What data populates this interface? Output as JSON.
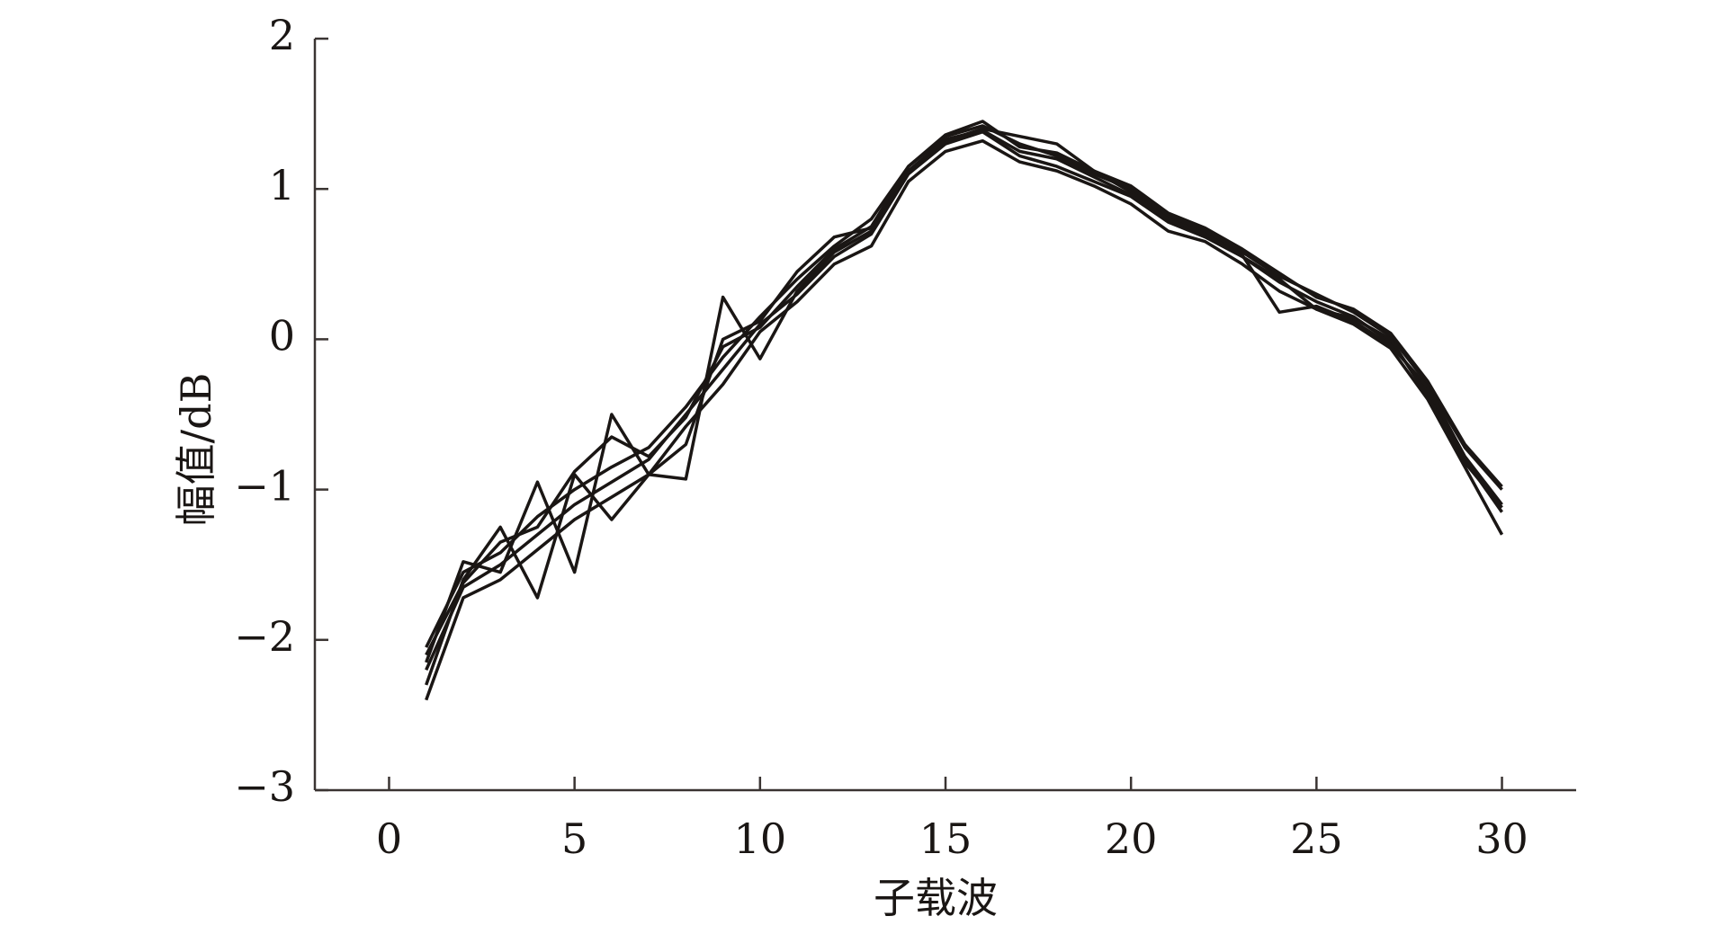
{
  "chart_data": {
    "type": "line",
    "x_label": "子载波",
    "y_label": "幅值/dB",
    "x": [
      1,
      2,
      3,
      4,
      5,
      6,
      7,
      8,
      9,
      10,
      11,
      12,
      13,
      14,
      15,
      16,
      17,
      18,
      19,
      20,
      21,
      22,
      23,
      24,
      25,
      26,
      27,
      28,
      29,
      30
    ],
    "series": [
      {
        "color": "#1a1614",
        "values": [
          -2.2,
          -1.65,
          -1.5,
          -1.3,
          -1.1,
          -0.95,
          -0.8,
          -0.5,
          -0.2,
          0.1,
          0.3,
          0.55,
          0.7,
          1.1,
          1.3,
          1.38,
          1.22,
          1.15,
          1.05,
          0.95,
          0.78,
          0.68,
          0.55,
          0.38,
          0.25,
          0.15,
          -0.02,
          -0.35,
          -0.8,
          -1.15
        ]
      },
      {
        "color": "#1a1614",
        "values": [
          -2.05,
          -1.55,
          -1.42,
          -1.18,
          -1.0,
          -0.85,
          -0.72,
          -0.45,
          -0.12,
          0.15,
          0.4,
          0.62,
          0.8,
          1.15,
          1.35,
          1.42,
          1.3,
          1.22,
          1.1,
          1.0,
          0.82,
          0.72,
          0.58,
          0.42,
          0.3,
          0.18,
          0.02,
          -0.3,
          -0.72,
          -1.0
        ]
      },
      {
        "color": "#1a1614",
        "values": [
          -2.4,
          -1.72,
          -1.6,
          -1.4,
          -1.2,
          -1.05,
          -0.9,
          -0.58,
          -0.3,
          0.05,
          0.25,
          0.5,
          0.62,
          1.05,
          1.25,
          1.32,
          1.18,
          1.12,
          1.02,
          0.9,
          0.72,
          0.65,
          0.5,
          0.32,
          0.2,
          0.1,
          -0.06,
          -0.4,
          -0.85,
          -1.3
        ]
      },
      {
        "color": "#1a1614",
        "values": [
          -2.3,
          -1.6,
          -1.25,
          -1.72,
          -0.9,
          -1.2,
          -0.9,
          -0.93,
          0.28,
          -0.13,
          0.32,
          0.58,
          0.72,
          1.12,
          1.32,
          1.4,
          1.35,
          1.3,
          1.12,
          0.98,
          0.8,
          0.7,
          0.56,
          0.18,
          0.22,
          0.12,
          -0.04,
          -0.32,
          -0.78,
          -1.1
        ]
      },
      {
        "color": "#1a1614",
        "values": [
          -2.15,
          -1.48,
          -1.55,
          -0.95,
          -1.55,
          -0.5,
          -0.9,
          -0.7,
          0.0,
          0.12,
          0.45,
          0.68,
          0.74,
          1.12,
          1.33,
          1.39,
          1.25,
          1.2,
          1.08,
          0.96,
          0.8,
          0.7,
          0.55,
          0.4,
          0.2,
          0.14,
          0.0,
          -0.38,
          -0.82,
          -1.12
        ]
      },
      {
        "color": "#1a1614",
        "values": [
          -2.1,
          -1.62,
          -1.35,
          -1.25,
          -0.88,
          -0.65,
          -0.78,
          -0.52,
          -0.05,
          0.08,
          0.35,
          0.6,
          0.75,
          1.15,
          1.36,
          1.45,
          1.28,
          1.24,
          1.12,
          1.02,
          0.84,
          0.74,
          0.6,
          0.44,
          0.28,
          0.2,
          0.04,
          -0.28,
          -0.7,
          -0.98
        ]
      }
    ],
    "xlim": [
      -2,
      32
    ],
    "ylim": [
      -3,
      2
    ],
    "xticks": [
      0,
      5,
      10,
      15,
      20,
      25,
      30
    ],
    "yticks": [
      {
        "value": -3,
        "label": "−3"
      },
      {
        "value": -2,
        "label": "−2"
      },
      {
        "value": -1,
        "label": "−1"
      },
      0,
      1,
      2
    ]
  }
}
